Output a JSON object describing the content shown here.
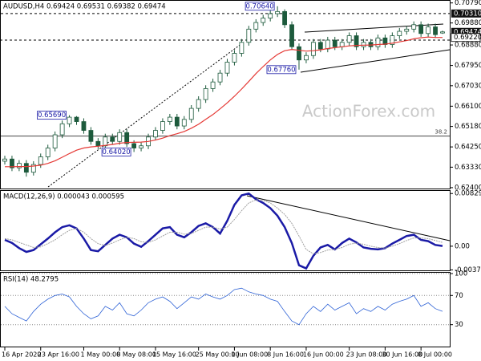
{
  "chart_data": [
    {
      "type": "candlestick",
      "title": "AUDUSD,H4 0.69424 0.69531 0.69382 0.69474",
      "watermark": "ActionForex.com",
      "categories": [
        "16 Apr 2020",
        null,
        null,
        null,
        null,
        "23 Apr 16:00",
        null,
        null,
        null,
        null,
        null,
        "1 May 00:00",
        null,
        null,
        null,
        null,
        "8 May 08:00",
        null,
        null,
        null,
        null,
        "15 May 16:00",
        null,
        null,
        null,
        null,
        null,
        "25 May 00:00",
        null,
        null,
        null,
        null,
        "1 Jun 08:00",
        null,
        null,
        null,
        null,
        "8 Jun 16:00",
        null,
        null,
        null,
        null,
        "16 Jun 00:00",
        null,
        null,
        null,
        null,
        null,
        "23 Jun 08:00",
        null,
        null,
        null,
        null,
        "30 Jun 16:00",
        null,
        null,
        null,
        null,
        "8 Jul 00:00",
        null,
        null,
        null
      ],
      "opens": [
        0.636,
        0.637,
        0.633,
        0.635,
        0.631,
        0.6345,
        0.638,
        0.642,
        0.648,
        0.653,
        0.656,
        0.654,
        0.65,
        0.645,
        0.643,
        0.647,
        0.645,
        0.649,
        0.644,
        0.642,
        0.643,
        0.647,
        0.65,
        0.654,
        0.656,
        0.652,
        0.655,
        0.66,
        0.664,
        0.669,
        0.672,
        0.676,
        0.681,
        0.685,
        0.69,
        0.696,
        0.699,
        0.701,
        0.703,
        0.704,
        0.698,
        0.688,
        0.682,
        0.684,
        0.69,
        0.687,
        0.691,
        0.688,
        0.69,
        0.693,
        0.688,
        0.69,
        0.688,
        0.692,
        0.689,
        0.693,
        0.695,
        0.696,
        0.698,
        0.694,
        0.697,
        0.69424
      ],
      "highs": [
        0.6385,
        0.6385,
        0.6365,
        0.6365,
        0.636,
        0.6395,
        0.6435,
        0.6495,
        0.6545,
        0.6569,
        0.6565,
        0.6555,
        0.6515,
        0.6465,
        0.6485,
        0.6485,
        0.6505,
        0.6505,
        0.6455,
        0.6445,
        0.6485,
        0.6515,
        0.6555,
        0.6575,
        0.6575,
        0.6565,
        0.6615,
        0.6655,
        0.6705,
        0.6735,
        0.6775,
        0.6825,
        0.6865,
        0.6915,
        0.6975,
        0.7005,
        0.7025,
        0.7045,
        0.7064,
        0.705,
        0.6995,
        0.6895,
        0.6855,
        0.6915,
        0.6915,
        0.6925,
        0.6925,
        0.6915,
        0.6945,
        0.6945,
        0.6915,
        0.6915,
        0.6935,
        0.6935,
        0.6945,
        0.6965,
        0.6975,
        0.6995,
        0.6995,
        0.6985,
        0.6985,
        0.69531
      ],
      "lows": [
        0.6345,
        0.6315,
        0.6315,
        0.629,
        0.6295,
        0.633,
        0.6365,
        0.6405,
        0.6465,
        0.6515,
        0.6525,
        0.6485,
        0.6435,
        0.6415,
        0.6415,
        0.6435,
        0.6435,
        0.6425,
        0.6402,
        0.6405,
        0.6415,
        0.6455,
        0.6485,
        0.6525,
        0.6505,
        0.6505,
        0.6535,
        0.6585,
        0.6625,
        0.6675,
        0.6705,
        0.6745,
        0.6795,
        0.6835,
        0.6885,
        0.6945,
        0.6975,
        0.6995,
        0.7015,
        0.6965,
        0.6865,
        0.6776,
        0.6805,
        0.6825,
        0.6855,
        0.6855,
        0.6865,
        0.6865,
        0.6885,
        0.6865,
        0.6865,
        0.6865,
        0.6865,
        0.6875,
        0.6875,
        0.6915,
        0.6935,
        0.6945,
        0.6925,
        0.6925,
        0.692,
        0.69382
      ],
      "closes": [
        0.637,
        0.633,
        0.635,
        0.631,
        0.6345,
        0.638,
        0.642,
        0.648,
        0.653,
        0.656,
        0.654,
        0.65,
        0.645,
        0.643,
        0.647,
        0.645,
        0.649,
        0.644,
        0.642,
        0.643,
        0.647,
        0.65,
        0.654,
        0.656,
        0.652,
        0.655,
        0.66,
        0.664,
        0.669,
        0.672,
        0.676,
        0.681,
        0.685,
        0.69,
        0.696,
        0.699,
        0.701,
        0.703,
        0.704,
        0.698,
        0.688,
        0.682,
        0.684,
        0.69,
        0.687,
        0.691,
        0.688,
        0.69,
        0.693,
        0.688,
        0.69,
        0.688,
        0.692,
        0.689,
        0.693,
        0.695,
        0.696,
        0.698,
        0.694,
        0.697,
        0.6935,
        0.69474
      ],
      "ma": [
        0.6335,
        0.6335,
        0.6336,
        0.6336,
        0.6338,
        0.6342,
        0.635,
        0.6362,
        0.6378,
        0.6395,
        0.641,
        0.642,
        0.6425,
        0.6428,
        0.6432,
        0.6436,
        0.6442,
        0.6445,
        0.6446,
        0.6447,
        0.645,
        0.6456,
        0.6465,
        0.6476,
        0.6485,
        0.6495,
        0.651,
        0.6528,
        0.655,
        0.6572,
        0.6598,
        0.6625,
        0.6655,
        0.6688,
        0.6722,
        0.6758,
        0.679,
        0.682,
        0.6845,
        0.6862,
        0.6868,
        0.6864,
        0.686,
        0.6862,
        0.6866,
        0.6872,
        0.6876,
        0.688,
        0.6884,
        0.6886,
        0.6887,
        0.6888,
        0.689,
        0.6892,
        0.6896,
        0.6902,
        0.6908,
        0.6916,
        0.6921,
        0.6924,
        0.6922,
        0.6922
      ],
      "candle_color": "#1d5a3c",
      "ma_color": "#e53935",
      "ylim": [
        0.6236,
        0.7085
      ],
      "yticks": [
        {
          "value": 0.7079,
          "label": "0.70790"
        },
        {
          "value": 0.6988,
          "label": "0.69880"
        },
        {
          "value": 0.6888,
          "label": "0.68880"
        },
        {
          "value": 0.6795,
          "label": "0.67950"
        },
        {
          "value": 0.6703,
          "label": "0.67030"
        },
        {
          "value": 0.661,
          "label": "0.66100"
        },
        {
          "value": 0.6518,
          "label": "0.65180"
        },
        {
          "value": 0.6425,
          "label": "0.64250"
        },
        {
          "value": 0.6333,
          "label": "0.63330"
        },
        {
          "value": 0.624,
          "label": "0.62400"
        }
      ],
      "levels": [
        {
          "value": 0.7031,
          "label": "0.70310"
        }
      ],
      "ma_label": {
        "value": 0.6922,
        "label": "0.69220"
      },
      "fib": {
        "value": 0.6474,
        "label": "38.2"
      },
      "annotations": [
        {
          "value": 0.7064,
          "label": "0.70640"
        },
        {
          "value": 0.6776,
          "label": "0.67760"
        },
        {
          "value": 0.6569,
          "label": "0.65690"
        },
        {
          "value": 0.6402,
          "label": "0.64020"
        }
      ]
    },
    {
      "type": "line",
      "title": "MACD(12,26,9) 0.000043 0.000595",
      "series": [
        {
          "name": "MACD",
          "color": "#1a1aa6",
          "values": [
            0.001,
            0.0005,
            -0.0003,
            -0.0009,
            -0.0006,
            0.0003,
            0.0012,
            0.0022,
            0.003,
            0.0033,
            0.0028,
            0.0012,
            -0.0006,
            -0.0008,
            0.0002,
            0.0012,
            0.0018,
            0.0014,
            0.0004,
            -0.0001,
            0.0008,
            0.0018,
            0.0028,
            0.003,
            0.0018,
            0.0014,
            0.0022,
            0.0032,
            0.0036,
            0.003,
            0.002,
            0.004,
            0.0065,
            0.008,
            0.0083,
            0.0074,
            0.0068,
            0.006,
            0.0048,
            0.003,
            0.0005,
            -0.003,
            -0.0035,
            -0.0015,
            -0.0002,
            0.0002,
            -0.0005,
            0.0005,
            0.0012,
            0.0006,
            -0.0002,
            -0.0004,
            -0.0005,
            -0.0003,
            0.0004,
            0.001,
            0.0016,
            0.0018,
            0.001,
            0.0008,
            0.0002,
            4.3e-05
          ]
        },
        {
          "name": "Signal",
          "color": "#a0a0a0",
          "values": [
            0.0012,
            0.001,
            0.0006,
            0.0002,
            -0.0002,
            -0.0001,
            0.0004,
            0.001,
            0.0018,
            0.0025,
            0.0028,
            0.0022,
            0.0012,
            0.0004,
            0.0001,
            0.0005,
            0.001,
            0.0014,
            0.0012,
            0.0007,
            0.0006,
            0.001,
            0.0016,
            0.0022,
            0.0022,
            0.0019,
            0.002,
            0.0025,
            0.003,
            0.003,
            0.0027,
            0.003,
            0.0042,
            0.0056,
            0.0068,
            0.0073,
            0.0072,
            0.0068,
            0.006,
            0.005,
            0.0036,
            0.0016,
            -0.0005,
            -0.0012,
            -0.001,
            -0.0006,
            -0.0005,
            -0.0002,
            0.0003,
            0.0005,
            0.0003,
            0,
            -0.0002,
            -0.0003,
            0,
            0.0004,
            0.0009,
            0.0013,
            0.0013,
            0.0012,
            0.0009,
            0.000595
          ]
        }
      ],
      "ylim": [
        -0.0038,
        0.0087
      ],
      "yticks": [
        {
          "value": 0.00829,
          "label": "0.008290"
        },
        {
          "value": 0,
          "label": "0.00"
        },
        {
          "value": -0.003725,
          "label": "-0.003725"
        }
      ]
    },
    {
      "type": "line",
      "title": "RSI(14) 48.2795",
      "series": [
        {
          "name": "RSI",
          "color": "#2f63d6",
          "values": [
            55,
            45,
            40,
            35,
            48,
            58,
            65,
            70,
            72,
            68,
            55,
            45,
            38,
            42,
            55,
            50,
            60,
            45,
            42,
            50,
            60,
            65,
            68,
            62,
            52,
            60,
            68,
            65,
            72,
            68,
            65,
            70,
            78,
            80,
            75,
            72,
            70,
            65,
            62,
            48,
            35,
            30,
            45,
            55,
            48,
            58,
            50,
            55,
            60,
            45,
            52,
            48,
            55,
            50,
            58,
            62,
            65,
            70,
            55,
            60,
            52,
            48.2795
          ]
        }
      ],
      "ylim": [
        0,
        100
      ],
      "yticks": [
        100,
        70,
        30
      ],
      "grid": true
    }
  ]
}
